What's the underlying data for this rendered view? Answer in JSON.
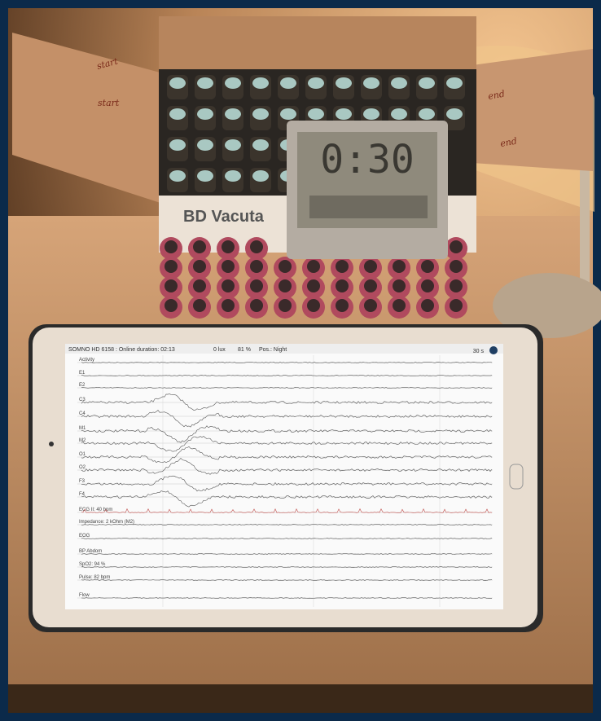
{
  "photo": {
    "box": {
      "label": "BD Vacuta",
      "notes_left": [
        "start",
        "start"
      ],
      "notes_right": [
        "end",
        "end"
      ]
    },
    "clock": {
      "time": "0:30"
    },
    "tablet": {
      "status_bar": {
        "device": "SOMNO HD 6158 : Online duration: 02:13",
        "light": "0 lux",
        "battery": "81 %",
        "position": "Pos.: Night",
        "window": "30 s"
      },
      "channels": [
        "Activity",
        "E1",
        "E2",
        "C3",
        "C4",
        "M1",
        "M2",
        "O1",
        "O2",
        "F3",
        "F4",
        "ECG II: 40 bpm",
        "Impedance: 2 kOhm (M2)",
        "EOG",
        "BP Abdom",
        "SpO2: 94 %",
        "Pulse: 82 bpm",
        "Flow"
      ]
    }
  }
}
